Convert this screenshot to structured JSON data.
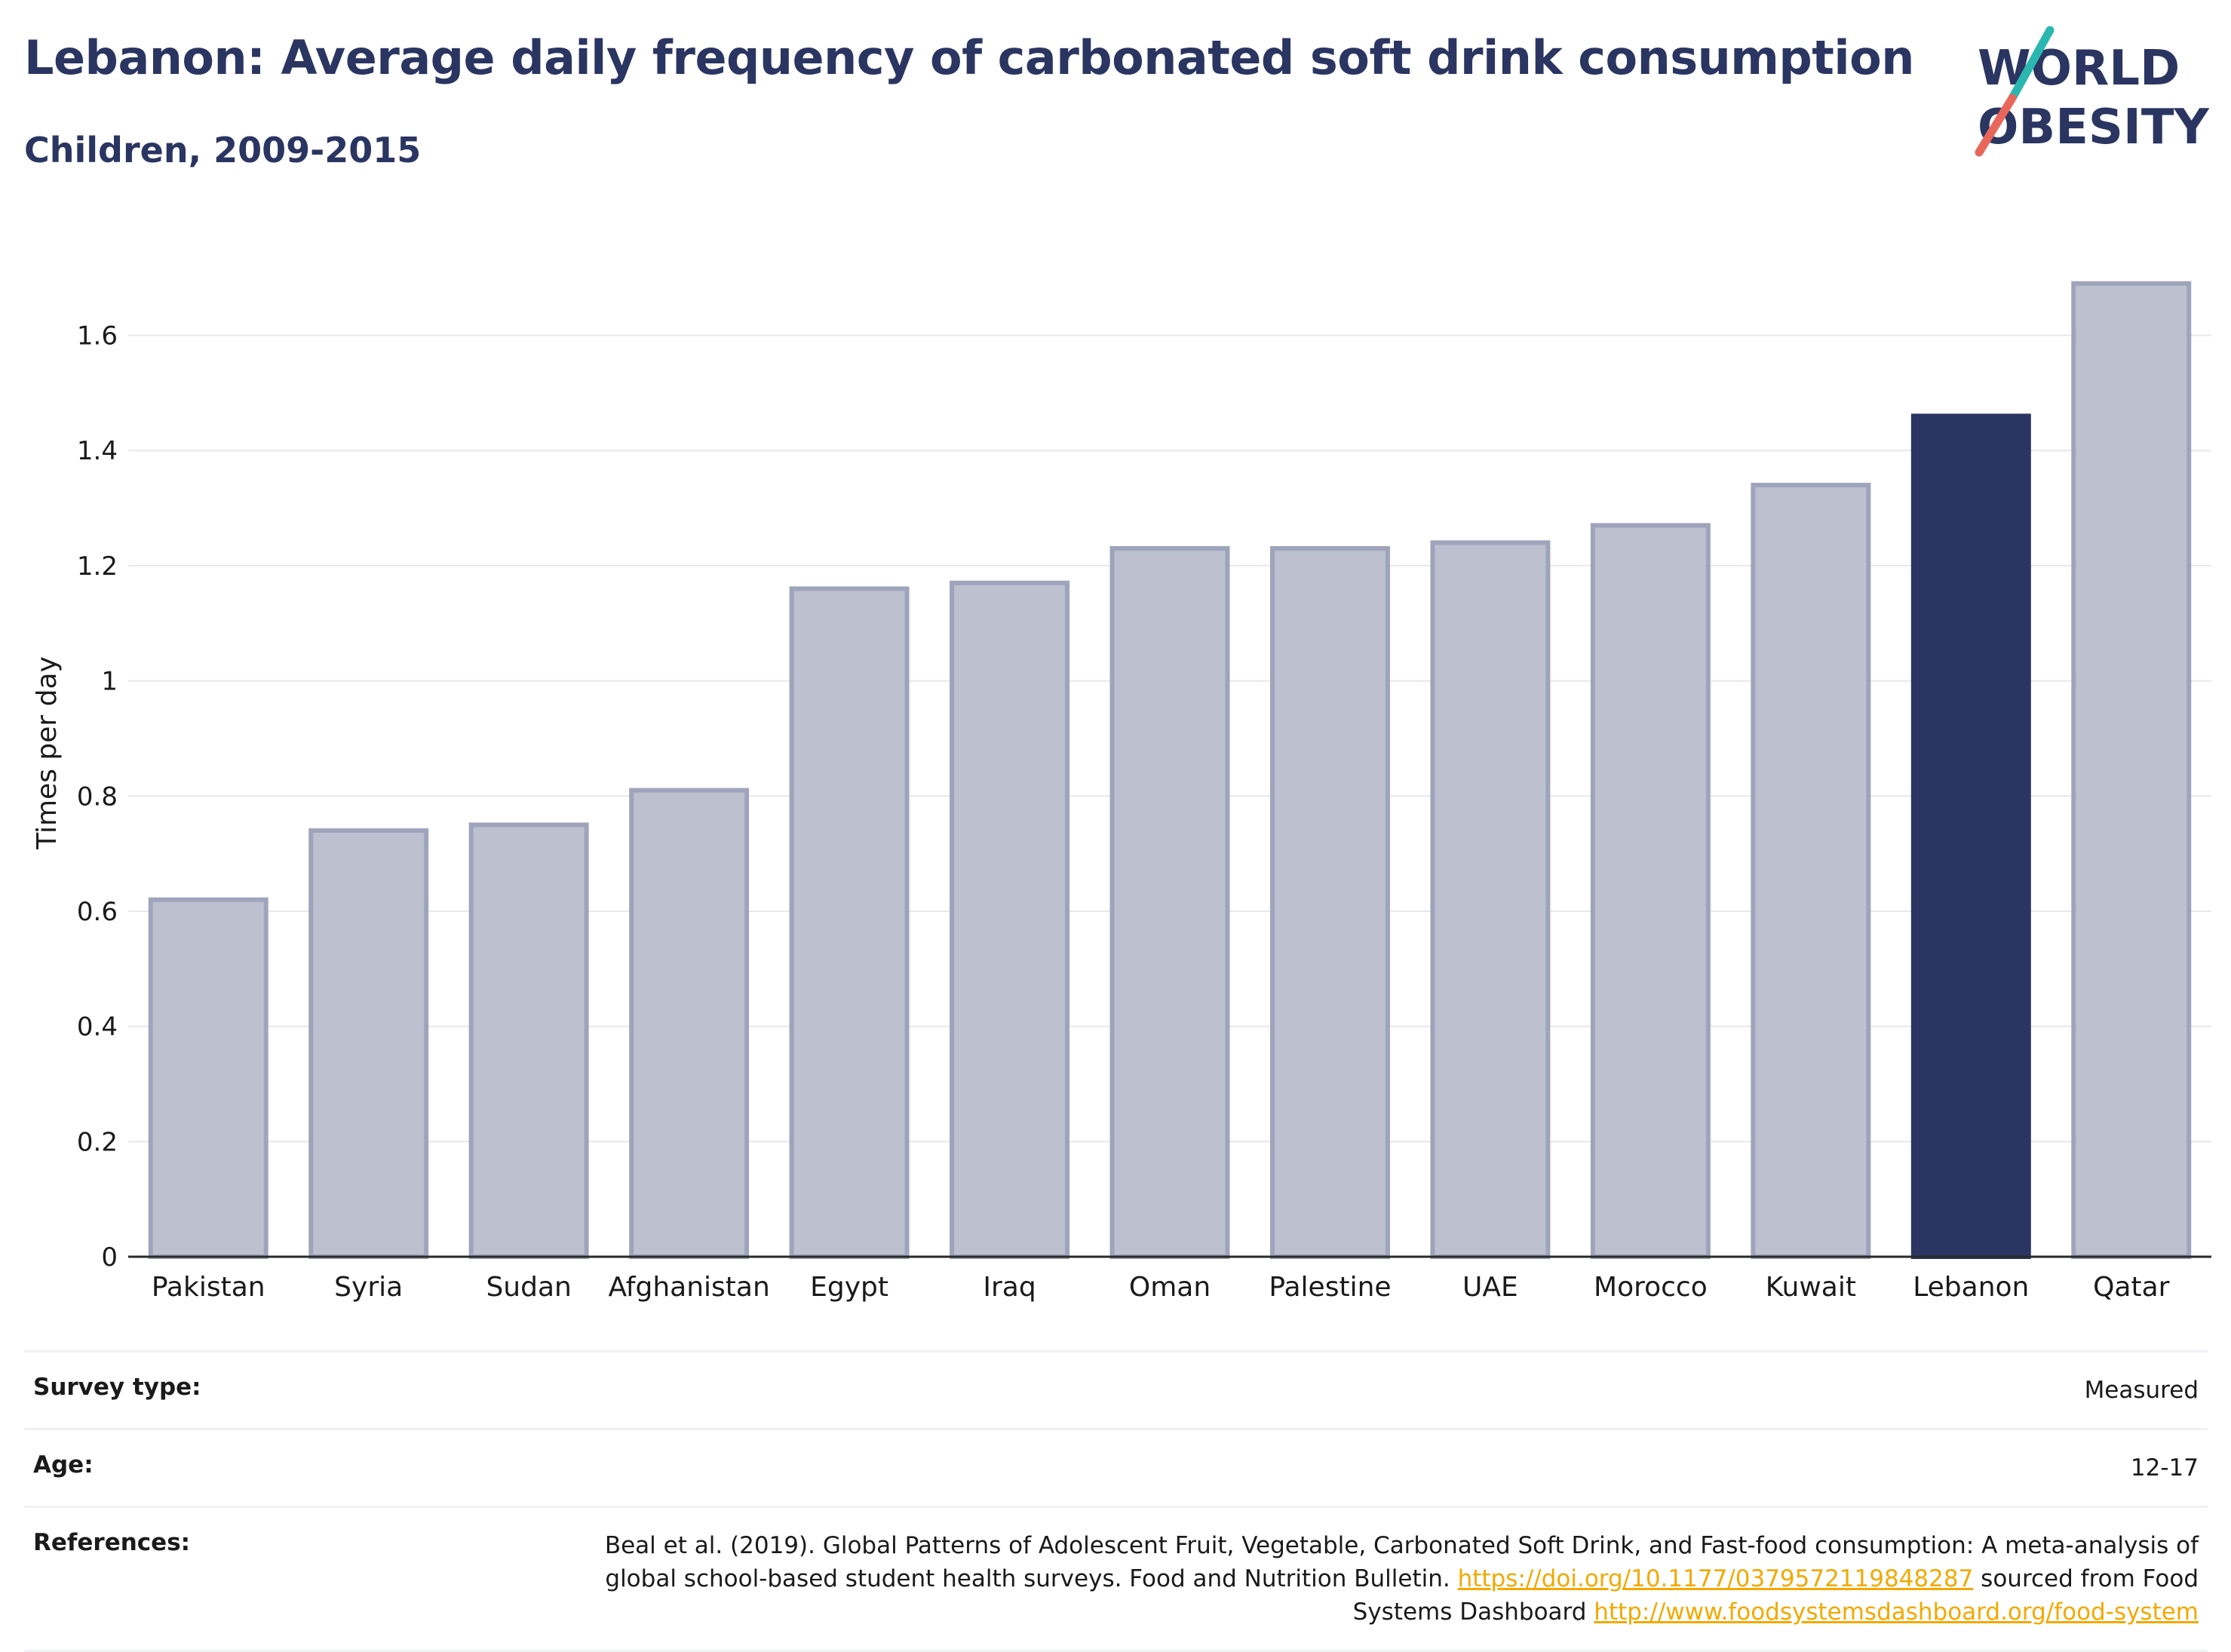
{
  "header": {
    "title": "Lebanon: Average daily frequency of carbonated soft drink consumption",
    "subtitle": "Children, 2009-2015"
  },
  "logo": {
    "line1": "WORLD",
    "line2": "OBESITY",
    "accent_teal": "#2ab7b0",
    "accent_coral": "#e8675a",
    "text_color": "#2b3561"
  },
  "chart_data": {
    "type": "bar",
    "title": "Lebanon: Average daily frequency of carbonated soft drink consumption",
    "subtitle": "Children, 2009-2015",
    "xlabel": "",
    "ylabel": "Times per day",
    "ylim": [
      0,
      1.75
    ],
    "yticks": [
      0,
      0.2,
      0.4,
      0.6,
      0.8,
      1,
      1.2,
      1.4,
      1.6
    ],
    "ytick_labels": [
      "0",
      "0.2",
      "0.4",
      "0.6",
      "0.8",
      "1",
      "1.2",
      "1.4",
      "1.6"
    ],
    "grid": true,
    "legend": "none",
    "categories": [
      "Pakistan",
      "Syria",
      "Sudan",
      "Afghanistan",
      "Egypt",
      "Iraq",
      "Oman",
      "Palestine",
      "UAE",
      "Morocco",
      "Kuwait",
      "Lebanon",
      "Qatar"
    ],
    "values": [
      0.62,
      0.74,
      0.75,
      0.81,
      1.16,
      1.17,
      1.23,
      1.23,
      1.24,
      1.27,
      1.34,
      1.46,
      1.69
    ],
    "highlight": "Lebanon",
    "colors": {
      "bar": "#bcc0cf",
      "bar_border": "#9ea4bb",
      "highlight": "#2b3561",
      "grid": "#e6e8ee",
      "axis": "#2a2a2a"
    }
  },
  "info": {
    "rows": [
      {
        "label": "Survey type:",
        "value": "Measured"
      },
      {
        "label": "Age:",
        "value": "12-17"
      }
    ],
    "references": {
      "label": "References:",
      "text_before": "Beal et al. (2019). Global Patterns of Adolescent Fruit, Vegetable, Carbonated Soft Drink, and Fast-food consumption: A meta-analysis of global school-based student health surveys. Food and Nutrition Bulletin. ",
      "link1": "https://doi.org/10.1177/0379572119848287",
      "text_middle": " sourced from Food Systems Dashboard ",
      "link2": "http://www.foodsystemsdashboard.org/food-system"
    }
  }
}
